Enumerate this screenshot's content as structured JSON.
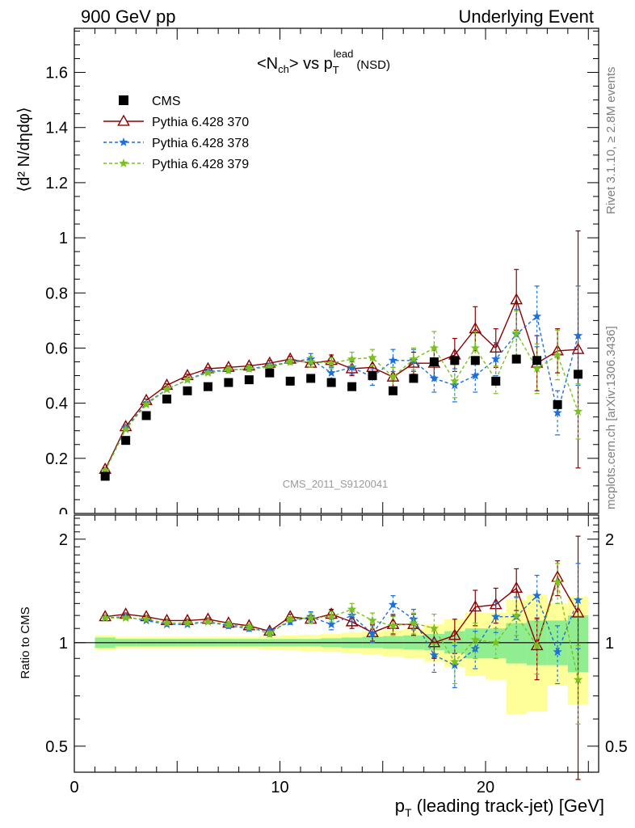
{
  "header": {
    "left_label": "900 GeV pp",
    "right_label": "Underlying Event"
  },
  "side_labels": {
    "rivet": "Rivet 3.1.10, ≥ 2.8M events",
    "mcplots": "mcplots.cern.ch [arXiv:1306.3436]"
  },
  "chart_data": [
    {
      "type": "scatter",
      "panel": "main",
      "title": {
        "lhs": "<N",
        "lhs_sub": "ch",
        "mid": "> vs p",
        "sub": "T",
        "sup": "lead",
        "tail": "(NSD)"
      },
      "ylabel": "⟨d² N/dηdφ⟩",
      "analysis_label": "CMS_2011_S9120041",
      "xlim": [
        0,
        25.5
      ],
      "ylim": [
        0,
        1.76
      ],
      "yticks": [
        "0.2",
        "0.4",
        "0.6",
        "0.8",
        "1",
        "1.2",
        "1.4",
        "1.6"
      ],
      "ytick_values": [
        0.2,
        0.4,
        0.6,
        0.8,
        1.0,
        1.2,
        1.4,
        1.6
      ],
      "ytick_zero": "0",
      "x": [
        1.5,
        2.5,
        3.5,
        4.5,
        5.5,
        6.5,
        7.5,
        8.5,
        9.5,
        10.5,
        11.5,
        12.5,
        13.5,
        14.5,
        15.5,
        16.5,
        17.5,
        18.5,
        19.5,
        20.5,
        21.5,
        22.5,
        23.5,
        24.5
      ],
      "series": [
        {
          "name": "CMS",
          "color": "#000000",
          "marker": "square",
          "values": [
            0.135,
            0.265,
            0.355,
            0.415,
            0.445,
            0.46,
            0.475,
            0.485,
            0.51,
            0.48,
            0.49,
            0.475,
            0.46,
            0.5,
            0.445,
            0.49,
            0.55,
            0.555,
            0.555,
            0.48,
            0.56,
            0.555,
            0.395,
            0.505
          ],
          "yerr": [
            0,
            0,
            0,
            0,
            0,
            0,
            0,
            0,
            0,
            0,
            0,
            0,
            0,
            0,
            0,
            0,
            0,
            0,
            0,
            0,
            0,
            0,
            0,
            0
          ]
        },
        {
          "name": "Pythia 6.428 370",
          "color": "#8b0000",
          "marker": "triangle",
          "style": "solid",
          "values": [
            0.16,
            0.315,
            0.41,
            0.465,
            0.5,
            0.525,
            0.53,
            0.535,
            0.545,
            0.56,
            0.545,
            0.555,
            0.525,
            0.53,
            0.495,
            0.545,
            0.545,
            0.575,
            0.67,
            0.6,
            0.775,
            0.545,
            0.59,
            0.595
          ],
          "yerr": [
            0.005,
            0.005,
            0.005,
            0.005,
            0.005,
            0.005,
            0.005,
            0.005,
            0.01,
            0.01,
            0.015,
            0.02,
            0.025,
            0.03,
            0.035,
            0.04,
            0.05,
            0.06,
            0.08,
            0.07,
            0.11,
            0.1,
            0.08,
            0.43
          ]
        },
        {
          "name": "Pythia 6.428 378",
          "color": "#1e6fd9",
          "marker": "star",
          "style": "dashed",
          "values": [
            0.155,
            0.31,
            0.4,
            0.45,
            0.485,
            0.515,
            0.52,
            0.525,
            0.535,
            0.55,
            0.56,
            0.51,
            0.53,
            0.495,
            0.555,
            0.555,
            0.49,
            0.465,
            0.5,
            0.56,
            0.65,
            0.715,
            0.365,
            0.645
          ],
          "yerr": [
            0.005,
            0.005,
            0.005,
            0.005,
            0.005,
            0.005,
            0.01,
            0.01,
            0.01,
            0.01,
            0.02,
            0.02,
            0.025,
            0.03,
            0.04,
            0.04,
            0.05,
            0.06,
            0.06,
            0.06,
            0.09,
            0.11,
            0.08,
            0.18
          ]
        },
        {
          "name": "Pythia 6.428 379",
          "color": "#7ac11f",
          "marker": "star",
          "style": "dashed",
          "values": [
            0.155,
            0.305,
            0.395,
            0.45,
            0.485,
            0.51,
            0.52,
            0.525,
            0.53,
            0.55,
            0.55,
            0.545,
            0.56,
            0.565,
            0.495,
            0.56,
            0.6,
            0.48,
            0.6,
            0.485,
            0.655,
            0.525,
            0.575,
            0.37
          ],
          "yerr": [
            0.005,
            0.005,
            0.005,
            0.005,
            0.005,
            0.005,
            0.01,
            0.01,
            0.01,
            0.01,
            0.02,
            0.02,
            0.025,
            0.03,
            0.035,
            0.04,
            0.06,
            0.06,
            0.06,
            0.05,
            0.08,
            0.09,
            0.09,
            0.1
          ]
        }
      ],
      "legend_position": "top-left"
    },
    {
      "type": "scatter",
      "panel": "ratio",
      "ylabel": "Ratio to CMS",
      "xlabel": {
        "main": "p",
        "sub": "T",
        "tail": " (leading track-jet) [GeV]"
      },
      "log_y": true,
      "ylim": [
        0.42,
        2.35
      ],
      "yticks": [
        "0.5",
        "1",
        "2"
      ],
      "ytick_values": [
        0.5,
        1.0,
        2.0
      ],
      "xticks": [
        "0",
        "10",
        "20"
      ],
      "xtick_values": [
        0,
        10,
        20
      ],
      "reference_line": 1.0,
      "band_inner": {
        "color": "#90ee90",
        "lo": [
          0.965,
          0.975,
          0.975,
          0.975,
          0.975,
          0.975,
          0.975,
          0.975,
          0.975,
          0.975,
          0.975,
          0.97,
          0.965,
          0.965,
          0.96,
          0.955,
          0.95,
          0.93,
          0.9,
          0.9,
          0.87,
          0.86,
          0.86,
          0.82
        ],
        "hi": [
          1.035,
          1.025,
          1.025,
          1.025,
          1.025,
          1.025,
          1.025,
          1.025,
          1.025,
          1.025,
          1.025,
          1.03,
          1.035,
          1.04,
          1.045,
          1.05,
          1.06,
          1.08,
          1.1,
          1.1,
          1.14,
          1.16,
          1.16,
          1.2
        ]
      },
      "band_outer": {
        "color": "#ffff99",
        "lo": [
          0.95,
          0.96,
          0.96,
          0.96,
          0.96,
          0.96,
          0.96,
          0.96,
          0.955,
          0.95,
          0.945,
          0.94,
          0.93,
          0.925,
          0.91,
          0.9,
          0.88,
          0.85,
          0.8,
          0.78,
          0.62,
          0.63,
          0.75,
          0.66
        ],
        "hi": [
          1.05,
          1.04,
          1.04,
          1.04,
          1.04,
          1.04,
          1.04,
          1.04,
          1.045,
          1.05,
          1.055,
          1.06,
          1.07,
          1.08,
          1.09,
          1.1,
          1.13,
          1.17,
          1.22,
          1.22,
          1.33,
          1.38,
          1.3,
          1.36
        ]
      },
      "series": [
        {
          "name": "Pythia 6.428 370",
          "values": [
            1.19,
            1.21,
            1.19,
            1.16,
            1.16,
            1.17,
            1.14,
            1.12,
            1.08,
            1.19,
            1.17,
            1.21,
            1.15,
            1.07,
            1.13,
            1.13,
            1.0,
            1.05,
            1.27,
            1.29,
            1.44,
            0.98,
            1.55,
            1.22
          ],
          "yerr": [
            0.01,
            0.01,
            0.01,
            0.01,
            0.01,
            0.01,
            0.01,
            0.01,
            0.02,
            0.02,
            0.03,
            0.04,
            0.05,
            0.06,
            0.07,
            0.08,
            0.1,
            0.12,
            0.15,
            0.15,
            0.2,
            0.2,
            0.18,
            0.82
          ]
        },
        {
          "name": "Pythia 6.428 378",
          "values": [
            1.18,
            1.19,
            1.16,
            1.13,
            1.13,
            1.15,
            1.12,
            1.1,
            1.08,
            1.15,
            1.19,
            1.13,
            1.2,
            1.06,
            1.29,
            1.17,
            0.92,
            0.86,
            0.96,
            1.19,
            1.19,
            1.37,
            0.94,
            1.33
          ],
          "yerr": [
            0.01,
            0.01,
            0.01,
            0.01,
            0.01,
            0.01,
            0.02,
            0.02,
            0.02,
            0.02,
            0.04,
            0.04,
            0.05,
            0.06,
            0.08,
            0.08,
            0.1,
            0.12,
            0.12,
            0.12,
            0.17,
            0.2,
            0.18,
            0.37
          ]
        },
        {
          "name": "Pythia 6.428 379",
          "values": [
            1.18,
            1.18,
            1.17,
            1.14,
            1.14,
            1.15,
            1.13,
            1.11,
            1.06,
            1.17,
            1.18,
            1.19,
            1.25,
            1.16,
            1.12,
            1.14,
            1.1,
            0.88,
            1.02,
            1.0,
            1.2,
            0.98,
            1.5,
            0.78
          ],
          "yerr": [
            0.01,
            0.01,
            0.01,
            0.01,
            0.01,
            0.01,
            0.02,
            0.02,
            0.02,
            0.02,
            0.04,
            0.04,
            0.05,
            0.06,
            0.07,
            0.08,
            0.11,
            0.12,
            0.12,
            0.1,
            0.15,
            0.17,
            0.2,
            0.2
          ]
        }
      ]
    }
  ]
}
